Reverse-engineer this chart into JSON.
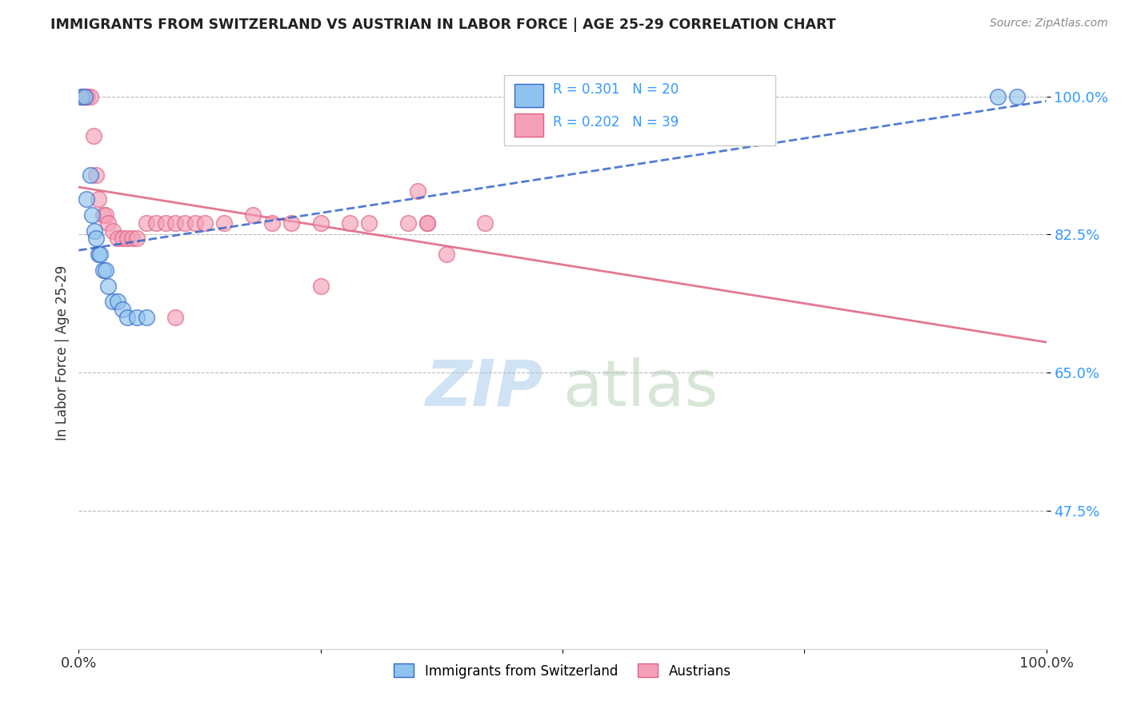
{
  "title": "IMMIGRANTS FROM SWITZERLAND VS AUSTRIAN IN LABOR FORCE | AGE 25-29 CORRELATION CHART",
  "source": "Source: ZipAtlas.com",
  "ylabel": "In Labor Force | Age 25-29",
  "xlim": [
    0.0,
    1.0
  ],
  "ylim": [
    0.3,
    1.05
  ],
  "yticks": [
    0.475,
    0.65,
    0.825,
    1.0
  ],
  "ytick_labels": [
    "47.5%",
    "65.0%",
    "82.5%",
    "100.0%"
  ],
  "r_swiss": 0.301,
  "n_swiss": 20,
  "r_austrian": 0.202,
  "n_austrian": 39,
  "legend_label_swiss": "Immigrants from Switzerland",
  "legend_label_austrian": "Austrians",
  "color_swiss": "#90C4EE",
  "color_austrian": "#F4A0B8",
  "color_swiss_line": "#3366CC",
  "color_austrian_line": "#E06080",
  "color_r_text": "#3399FF",
  "swiss_x": [
    0.003,
    0.006,
    0.008,
    0.012,
    0.014,
    0.016,
    0.018,
    0.02,
    0.022,
    0.025,
    0.028,
    0.03,
    0.035,
    0.04,
    0.045,
    0.05,
    0.06,
    0.07,
    0.95,
    0.97
  ],
  "swiss_y": [
    1.0,
    1.0,
    0.87,
    0.9,
    0.85,
    0.83,
    0.82,
    0.8,
    0.8,
    0.78,
    0.78,
    0.76,
    0.74,
    0.74,
    0.73,
    0.72,
    0.72,
    0.72,
    1.0,
    1.0
  ],
  "austrian_x": [
    0.003,
    0.005,
    0.007,
    0.009,
    0.012,
    0.015,
    0.018,
    0.02,
    0.025,
    0.028,
    0.03,
    0.035,
    0.04,
    0.045,
    0.05,
    0.055,
    0.06,
    0.07,
    0.08,
    0.09,
    0.1,
    0.11,
    0.12,
    0.13,
    0.15,
    0.18,
    0.2,
    0.22,
    0.25,
    0.28,
    0.3,
    0.34,
    0.36,
    0.38,
    0.42,
    0.25,
    0.1,
    0.35,
    0.36
  ],
  "austrian_y": [
    1.0,
    1.0,
    1.0,
    1.0,
    1.0,
    0.95,
    0.9,
    0.87,
    0.85,
    0.85,
    0.84,
    0.83,
    0.82,
    0.82,
    0.82,
    0.82,
    0.82,
    0.84,
    0.84,
    0.84,
    0.84,
    0.84,
    0.84,
    0.84,
    0.84,
    0.85,
    0.84,
    0.84,
    0.84,
    0.84,
    0.84,
    0.84,
    0.84,
    0.8,
    0.84,
    0.76,
    0.72,
    0.88,
    0.84
  ]
}
